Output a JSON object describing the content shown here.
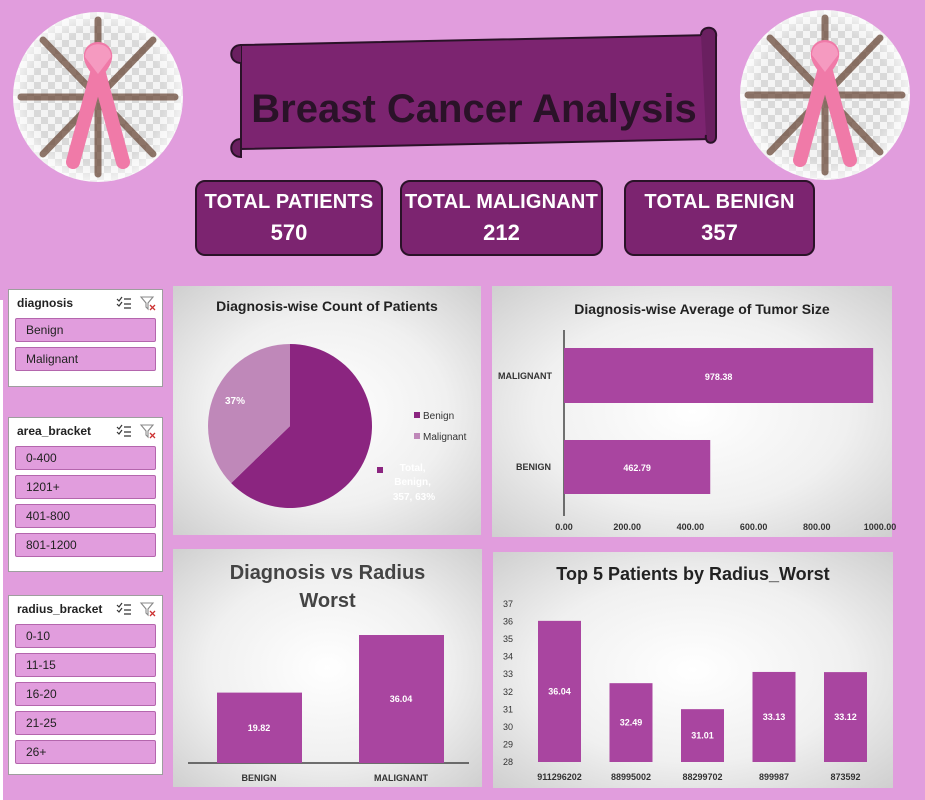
{
  "title": "Breast Cancer Analysis",
  "kpis": [
    {
      "label": "TOTAL PATIENTS",
      "value": "570"
    },
    {
      "label": "TOTAL MALIGNANT",
      "value": "212"
    },
    {
      "label": "TOTAL BENIGN",
      "value": "357"
    }
  ],
  "icons": {
    "logo": "pink-ribbon-icon",
    "multi_select": "multi-select-icon",
    "clear_filter": "clear-filter-icon"
  },
  "colors": {
    "background": "#e19ddd",
    "primary": "#7c2470",
    "benign": "#8b2580",
    "malignant": "#bf88b9",
    "bar": "#a945a0"
  },
  "slicers": [
    {
      "title": "diagnosis",
      "items": [
        "Benign",
        "Malignant"
      ]
    },
    {
      "title": "area_bracket",
      "items": [
        "0-400",
        "1201+",
        "401-800",
        "801-1200"
      ]
    },
    {
      "title": "radius_bracket",
      "items": [
        "0-10",
        "11-15",
        "16-20",
        "21-25",
        "26+"
      ]
    }
  ],
  "chart_data": [
    {
      "type": "pie",
      "title": "Diagnosis-wise Count of Patients",
      "categories": [
        "Benign",
        "Malignant"
      ],
      "values": [
        357,
        212
      ],
      "labels": {
        "malignant": "37%",
        "benign": "Total, Benign, 357, 63%",
        "benign_lines": [
          "Total,",
          "Benign,",
          "357, 63%"
        ]
      },
      "legend": [
        "Benign",
        "Malignant"
      ],
      "legend_position": "right"
    },
    {
      "type": "bar",
      "orientation": "horizontal",
      "title": "Diagnosis-wise Average of Tumor Size",
      "categories": [
        "MALIGNANT",
        "BENIGN"
      ],
      "values": [
        978.38,
        462.79
      ],
      "value_labels": [
        "978.38",
        "462.79"
      ],
      "xlim": [
        0,
        1000
      ],
      "ticks": [
        "0.00",
        "200.00",
        "400.00",
        "600.00",
        "800.00",
        "1000.00"
      ]
    },
    {
      "type": "bar",
      "title": "Diagnosis vs Radius Worst",
      "title_lines": [
        "Diagnosis vs Radius",
        "Worst"
      ],
      "categories": [
        "BENIGN",
        "MALIGNANT"
      ],
      "values": [
        19.82,
        36.04
      ],
      "value_labels": [
        "19.82",
        "36.04"
      ]
    },
    {
      "type": "bar",
      "title": "Top 5 Patients by Radius_Worst",
      "categories": [
        "911296202",
        "88995002",
        "88299702",
        "899987",
        "873592"
      ],
      "values": [
        36.04,
        32.49,
        31.01,
        33.13,
        33.12
      ],
      "value_labels": [
        "36.04",
        "32.49",
        "31.01",
        "33.13",
        "33.12"
      ],
      "ylim": [
        28,
        37
      ],
      "yticks": [
        "28",
        "29",
        "30",
        "31",
        "32",
        "33",
        "34",
        "35",
        "36",
        "37"
      ]
    }
  ]
}
